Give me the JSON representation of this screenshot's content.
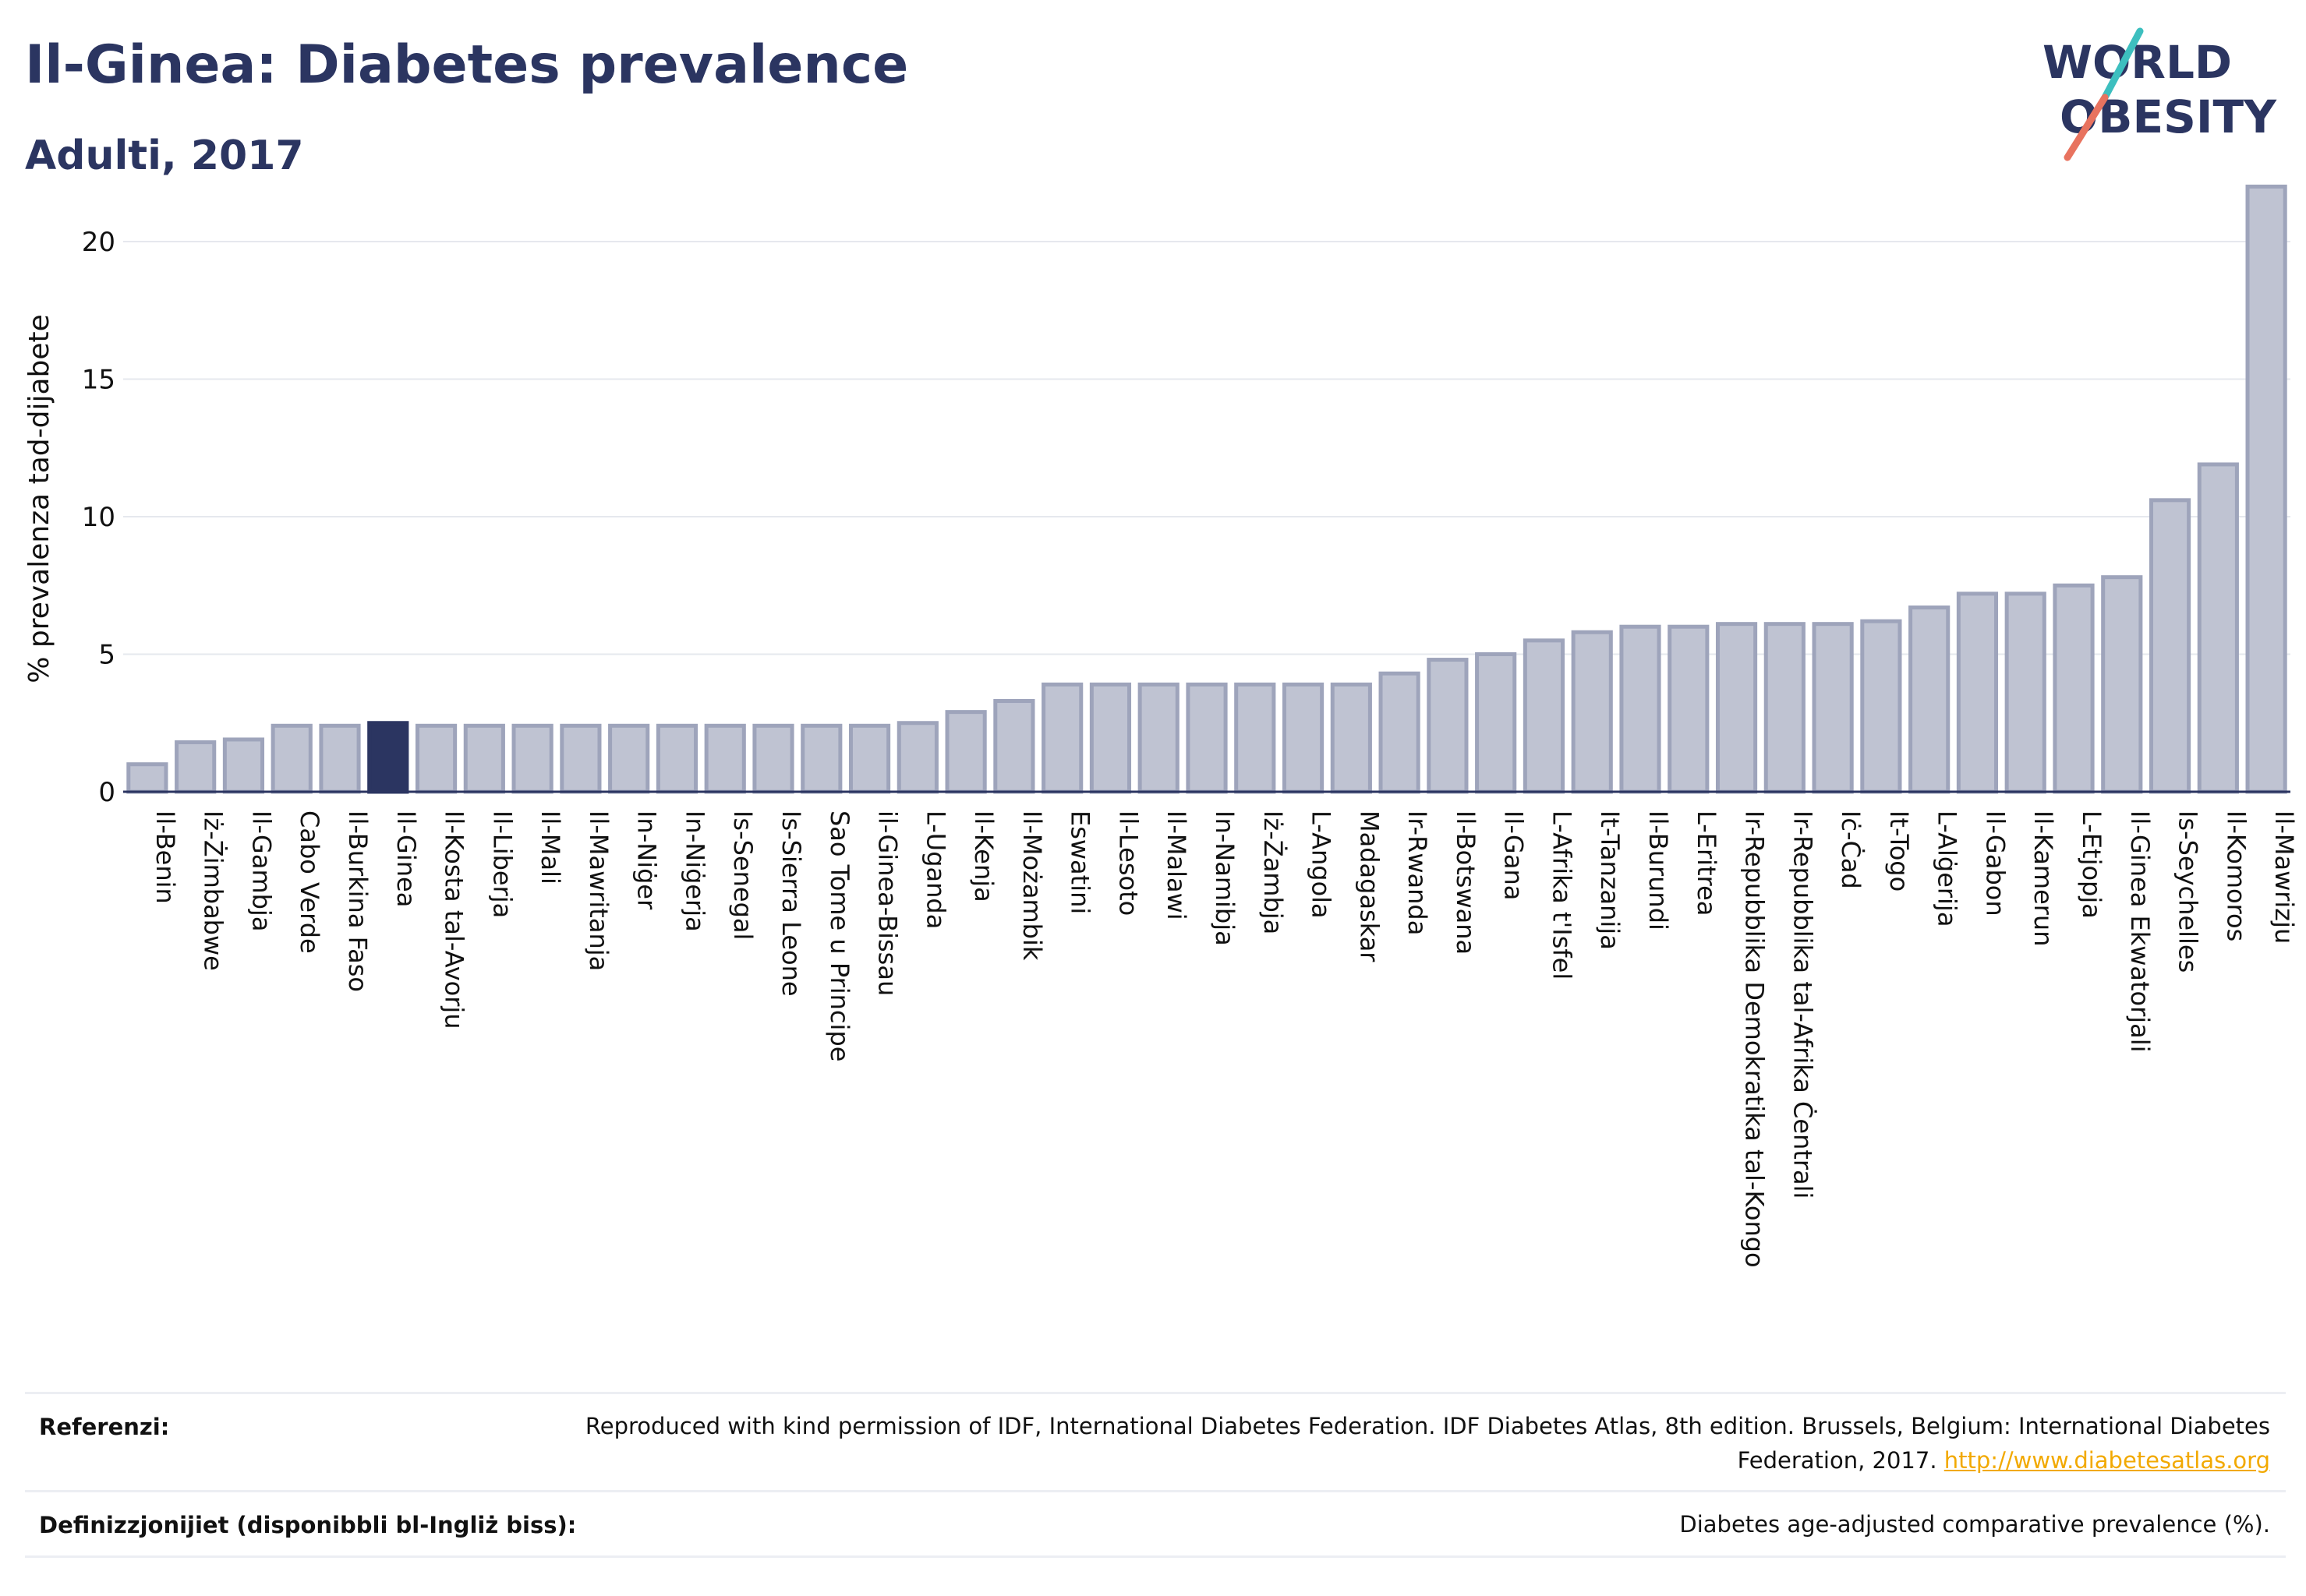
{
  "header": {
    "title": "Il-Ginea: Diabetes prevalence",
    "subtitle": "Adulti, 2017"
  },
  "logo": {
    "line1": "WORLD",
    "line2": "OBESITY",
    "colors": {
      "text": "#2b3561",
      "slash_teal": "#3dbfbf",
      "slash_coral": "#e8735f"
    }
  },
  "colors": {
    "bar": "#bfc3d2",
    "bar_edge": "#9ea4bb",
    "highlight": "#2b3561",
    "axis_text": "#111111",
    "grid": "#e6e8ee"
  },
  "chart_data": {
    "type": "bar",
    "ylabel": "% prevalenza tad-dijabete",
    "ylim": [
      0,
      22
    ],
    "yticks": [
      0,
      5,
      10,
      15,
      20
    ],
    "grid": true,
    "highlight": "Il-Ginea",
    "categories": [
      "Il-Benin",
      "Iż-Żimbabwe",
      "Il-Gambja",
      "Cabo Verde",
      "Il-Burkina Faso",
      "Il-Ginea",
      "Il-Kosta tal-Avorju",
      "Il-Liberja",
      "Il-Mali",
      "Il-Mawritanja",
      "In-Niġer",
      "In-Niġerja",
      "Is-Senegal",
      "Is-Sierra Leone",
      "Sao Tome u Principe",
      "il-Ginea-Bissau",
      "L-Uganda",
      "Il-Kenja",
      "Il-Możambik",
      "Eswatini",
      "Il-Lesoto",
      "Il-Malawi",
      "In-Namibja",
      "Iż-Żambja",
      "L-Angola",
      "Madagaskar",
      "Ir-Rwanda",
      "Il-Botswana",
      "Il-Gana",
      "L-Afrika t'Isfel",
      "It-Tanzanija",
      "Il-Burundi",
      "L-Eritrea",
      "Ir-Repubblika Demokratika tal-Kongo",
      "Ir-Repubblika tal-Afrika Ċentrali",
      "Iċ-Ċad",
      "It-Togo",
      "L-Alġerija",
      "Il-Gabon",
      "Il-Kamerun",
      "L-Etjopja",
      "Il-Ginea Ekwatorjali",
      "Is-Seychelles",
      "Il-Komoros",
      "Il-Mawrizju"
    ],
    "values": [
      1.0,
      1.8,
      1.9,
      2.4,
      2.4,
      2.5,
      2.4,
      2.4,
      2.4,
      2.4,
      2.4,
      2.4,
      2.4,
      2.4,
      2.4,
      2.4,
      2.5,
      2.9,
      3.3,
      3.9,
      3.9,
      3.9,
      3.9,
      3.9,
      3.9,
      3.9,
      4.3,
      4.8,
      5.0,
      5.5,
      5.8,
      6.0,
      6.0,
      6.1,
      6.1,
      6.1,
      6.2,
      6.7,
      7.2,
      7.2,
      7.5,
      7.8,
      10.6,
      11.9,
      22.0
    ]
  },
  "footer": {
    "references_label": "Referenzi:",
    "references_text": "Reproduced with kind permission of IDF, International Diabetes Federation. IDF Diabetes Atlas, 8th edition. Brussels, Belgium: International Diabetes Federation, 2017.",
    "references_link": "http://www.diabetesatlas.org",
    "definitions_label": "Definizzjonijiet (disponibbli bl-Ingliż biss):",
    "definitions_text": "Diabetes age-adjusted comparative prevalence (%)."
  }
}
